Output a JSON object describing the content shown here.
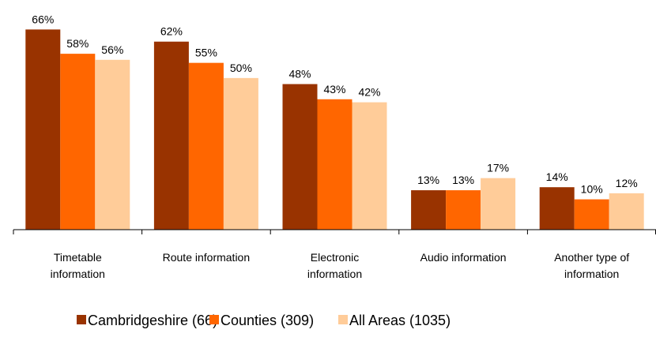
{
  "chart_data": {
    "type": "bar",
    "categories": [
      "Timetable information",
      "Route information",
      "Electronic information",
      "Audio information",
      "Another type of information"
    ],
    "series": [
      {
        "name": "Cambridgeshire (66)",
        "color": "#993300",
        "values": [
          66,
          62,
          48,
          13,
          14
        ],
        "value_labels": [
          "66%",
          "62%",
          "48%",
          "13%",
          "14%"
        ]
      },
      {
        "name": "Counties (309)",
        "color": "#ff6600",
        "values": [
          58,
          55,
          43,
          13,
          10
        ],
        "value_labels": [
          "58%",
          "55%",
          "43%",
          "13%",
          "10%"
        ]
      },
      {
        "name": "All Areas (1035)",
        "color": "#ffcc99",
        "values": [
          56,
          50,
          42,
          17,
          12
        ],
        "value_labels": [
          "56%",
          "50%",
          "42%",
          "17%",
          "12%"
        ]
      }
    ],
    "ylim": [
      0,
      70
    ]
  }
}
